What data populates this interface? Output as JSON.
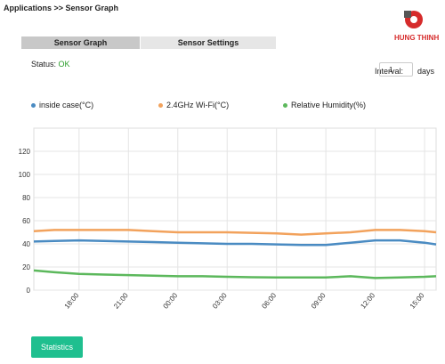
{
  "header": {
    "breadcrumb": "Applications >> Sensor Graph",
    "logo": "HUNG THINH"
  },
  "tabs": [
    "Sensor Graph",
    "Sensor Settings"
  ],
  "status": {
    "label": "Status:",
    "value": "OK"
  },
  "interval": {
    "label": "Interval:",
    "value": "1",
    "unit": "days"
  },
  "chart_data": {
    "type": "line",
    "x": [
      15.25,
      16.5,
      18,
      19.5,
      21,
      22.5,
      24,
      25.5,
      27,
      28.5,
      30,
      31.5,
      33,
      34.5,
      36,
      37.5,
      39,
      39.7
    ],
    "series": [
      {
        "name": "inside case(°C)",
        "color": "#4a8bc2",
        "values": [
          42,
          42.5,
          43,
          42.5,
          42,
          41.5,
          41,
          40.5,
          40,
          40,
          39.5,
          39,
          39,
          41,
          43,
          43,
          41,
          39.5
        ]
      },
      {
        "name": "2.4GHz Wi-Fi(°C)",
        "color": "#f2a25c",
        "values": [
          51,
          52,
          52,
          52,
          52,
          51,
          50,
          50,
          50,
          49.5,
          49,
          48,
          49,
          50,
          52,
          52,
          51,
          50
        ]
      },
      {
        "name": "Relative Humidity(%)",
        "color": "#5cb85c",
        "values": [
          17,
          15.5,
          14,
          13.5,
          13,
          12.5,
          12,
          12,
          11.5,
          11.2,
          11,
          11,
          11,
          12,
          10.5,
          11,
          11.5,
          12
        ]
      }
    ],
    "xlim": [
      15.25,
      39.7
    ],
    "xticks": [
      {
        "value": 18,
        "label": "18:00"
      },
      {
        "value": 21,
        "label": "21:00"
      },
      {
        "value": 24,
        "label": "00:00"
      },
      {
        "value": 27,
        "label": "03:00"
      },
      {
        "value": 30,
        "label": "06:00"
      },
      {
        "value": 33,
        "label": "09:00"
      },
      {
        "value": 36,
        "label": "12:00"
      },
      {
        "value": 39,
        "label": "15:00"
      }
    ],
    "ylim": [
      0,
      140
    ],
    "yticks": [
      0,
      20,
      40,
      60,
      80,
      100,
      120
    ],
    "grid": true
  },
  "button": "Statistics"
}
